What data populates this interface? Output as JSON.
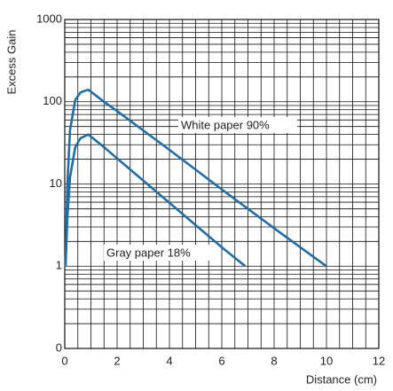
{
  "chart_data": {
    "type": "line",
    "y_label": "Excess Gain",
    "x_label": "Distance (cm)",
    "xlim": [
      0,
      12
    ],
    "xticks": [
      0,
      2,
      4,
      6,
      8,
      10,
      12
    ],
    "ylim": [
      0.1,
      1000
    ],
    "yticks": [
      {
        "value": 0.1,
        "label": "0"
      },
      1,
      10,
      100,
      1000
    ],
    "y_log": true,
    "grid": true,
    "series": [
      {
        "name": "White paper 90%",
        "color": "#1f6ea6",
        "x": [
          0.03,
          0.1,
          0.2,
          0.4,
          0.6,
          0.9,
          1.5,
          2,
          4,
          6,
          8,
          10
        ],
        "values": [
          1,
          10,
          45,
          105,
          130,
          140,
          100,
          77,
          26,
          8.6,
          2.9,
          1
        ]
      },
      {
        "name": "Gray paper 18%",
        "color": "#1f6ea6",
        "x": [
          0.03,
          0.1,
          0.2,
          0.4,
          0.6,
          0.9,
          1.5,
          2,
          4,
          6,
          6.9
        ],
        "values": [
          1,
          4,
          12,
          28,
          36,
          40,
          28,
          20.5,
          5.9,
          1.7,
          1
        ]
      }
    ]
  }
}
